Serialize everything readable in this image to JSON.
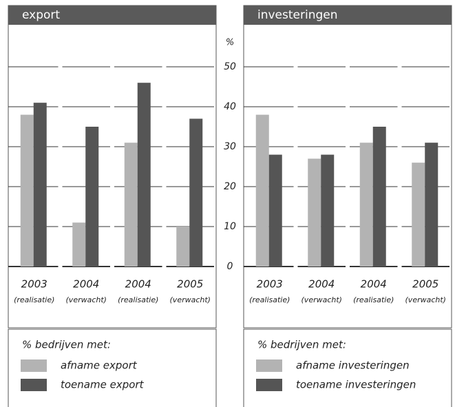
{
  "chart_data": [
    {
      "type": "bar",
      "title": "export",
      "y_label": "%",
      "categories": [
        "2003",
        "2004",
        "2004",
        "2005"
      ],
      "subcategories": [
        "(realisatie)",
        "(verwacht)",
        "(realisatie)",
        "(verwacht)"
      ],
      "legend_title": "% bedrijven met:",
      "series": [
        {
          "name": "afname export",
          "color": "#b3b3b3",
          "values": [
            38,
            11,
            31,
            10
          ]
        },
        {
          "name": "toename export",
          "color": "#555555",
          "values": [
            41,
            35,
            46,
            37
          ]
        }
      ],
      "ylim": [
        0,
        50
      ],
      "yticks": [
        0,
        10,
        20,
        30,
        40,
        50
      ],
      "grid": true
    },
    {
      "type": "bar",
      "title": "investeringen",
      "categories": [
        "2003",
        "2004",
        "2004",
        "2005"
      ],
      "subcategories": [
        "(realisatie)",
        "(verwacht)",
        "(realisatie)",
        "(verwacht)"
      ],
      "legend_title": "% bedrijven met:",
      "series": [
        {
          "name": "afname investeringen",
          "color": "#b3b3b3",
          "values": [
            38,
            27,
            31,
            26
          ]
        },
        {
          "name": "toename investeringen",
          "color": "#555555",
          "values": [
            28,
            28,
            35,
            31
          ]
        }
      ],
      "ylim": [
        0,
        50
      ],
      "yticks": [
        0,
        10,
        20,
        30,
        40,
        50
      ],
      "grid": true
    }
  ]
}
